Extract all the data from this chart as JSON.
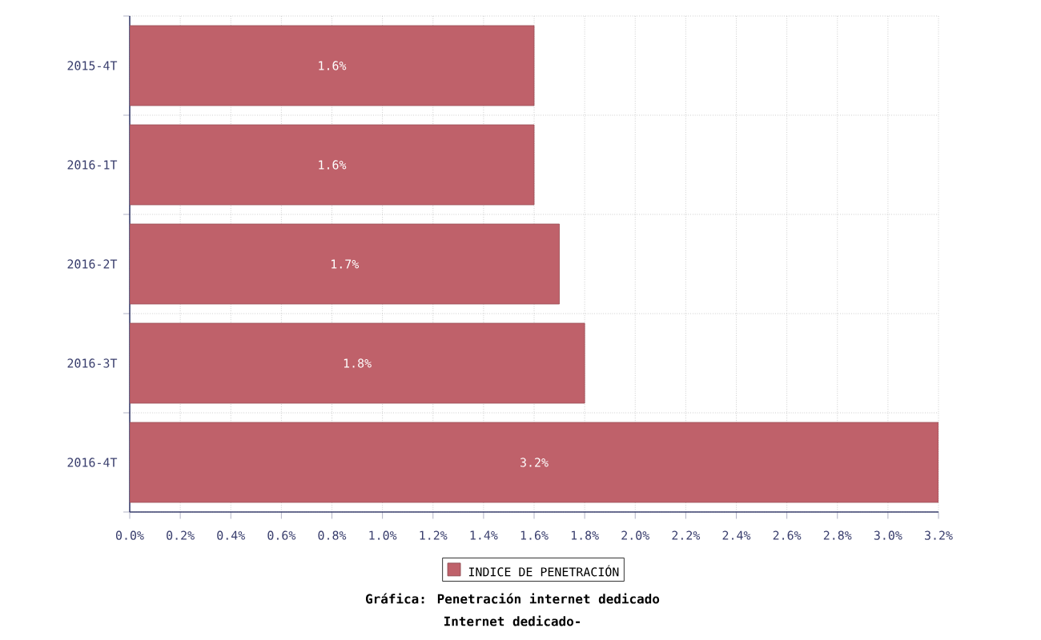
{
  "chart_data": {
    "type": "bar",
    "orientation": "horizontal",
    "title": "Gráfica: Penetración internet dedicado",
    "subtitle": "Internet dedicado-",
    "categories": [
      "2015-4T",
      "2016-1T",
      "2016-2T",
      "2016-3T",
      "2016-4T"
    ],
    "series": [
      {
        "name": "INDICE DE PENETRACIÓN",
        "color": "#bf616a",
        "values": [
          1.6,
          1.6,
          1.7,
          1.8,
          3.2
        ],
        "value_labels": [
          "1.6%",
          "1.6%",
          "1.7%",
          "1.8%",
          "3.2%"
        ]
      }
    ],
    "xlim": [
      0,
      3.2
    ],
    "xticks": [
      {
        "value": 0,
        "label": "0.0%"
      },
      {
        "value": 0.2,
        "label": "0.2%"
      },
      {
        "value": 0.4,
        "label": "0.4%"
      },
      {
        "value": 0.6,
        "label": "0.6%"
      },
      {
        "value": 0.8,
        "label": "0.8%"
      },
      {
        "value": 1.0,
        "label": "1.0%"
      },
      {
        "value": 1.2,
        "label": "1.2%"
      },
      {
        "value": 1.4,
        "label": "1.4%"
      },
      {
        "value": 1.6,
        "label": "1.6%"
      },
      {
        "value": 1.8,
        "label": "1.8%"
      },
      {
        "value": 2.0,
        "label": "2.0%"
      },
      {
        "value": 2.2,
        "label": "2.2%"
      },
      {
        "value": 2.4,
        "label": "2.4%"
      },
      {
        "value": 2.6,
        "label": "2.6%"
      },
      {
        "value": 2.8,
        "label": "2.8%"
      },
      {
        "value": 3.0,
        "label": "3.0%"
      },
      {
        "value": 3.2,
        "label": "3.2%"
      }
    ],
    "grid": true,
    "legend": "bottom"
  }
}
